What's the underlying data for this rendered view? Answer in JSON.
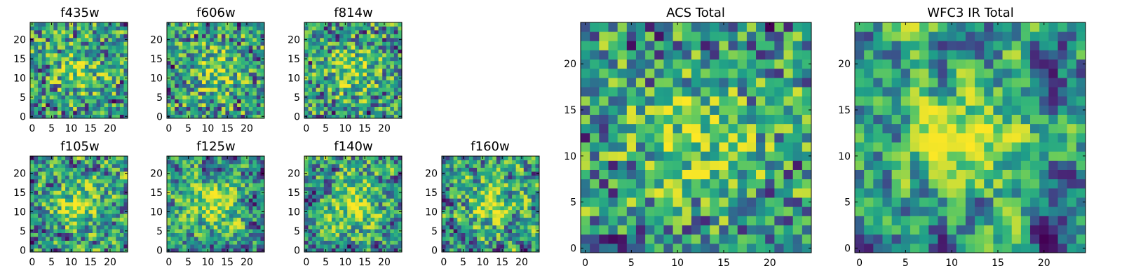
{
  "chart_data": [
    {
      "type": "heatmap",
      "title": "f435w",
      "grid_size": 25,
      "xticks": [
        0,
        5,
        10,
        15,
        20
      ],
      "yticks": [
        0,
        5,
        10,
        15,
        20
      ],
      "colormap": "viridis",
      "seed": 11,
      "smooth": 0
    },
    {
      "type": "heatmap",
      "title": "f606w",
      "grid_size": 25,
      "xticks": [
        0,
        5,
        10,
        15,
        20
      ],
      "yticks": [
        0,
        5,
        10,
        15,
        20
      ],
      "colormap": "viridis",
      "seed": 23,
      "smooth": 0
    },
    {
      "type": "heatmap",
      "title": "f814w",
      "grid_size": 25,
      "xticks": [
        0,
        5,
        10,
        15,
        20
      ],
      "yticks": [
        0,
        5,
        10,
        15,
        20
      ],
      "colormap": "viridis",
      "seed": 37,
      "smooth": 0
    },
    {
      "type": "heatmap",
      "title": "f105w",
      "grid_size": 25,
      "xticks": [
        0,
        5,
        10,
        15,
        20
      ],
      "yticks": [
        0,
        5,
        10,
        15,
        20
      ],
      "colormap": "viridis",
      "seed": 41,
      "smooth": 1
    },
    {
      "type": "heatmap",
      "title": "f125w",
      "grid_size": 25,
      "xticks": [
        0,
        5,
        10,
        15,
        20
      ],
      "yticks": [
        0,
        5,
        10,
        15,
        20
      ],
      "colormap": "viridis",
      "seed": 53,
      "smooth": 1
    },
    {
      "type": "heatmap",
      "title": "f140w",
      "grid_size": 25,
      "xticks": [
        0,
        5,
        10,
        15,
        20
      ],
      "yticks": [
        0,
        5,
        10,
        15,
        20
      ],
      "colormap": "viridis",
      "seed": 67,
      "smooth": 1
    },
    {
      "type": "heatmap",
      "title": "f160w",
      "grid_size": 25,
      "xticks": [
        0,
        5,
        10,
        15,
        20
      ],
      "yticks": [
        0,
        5,
        10,
        15,
        20
      ],
      "colormap": "viridis",
      "seed": 79,
      "smooth": 1
    },
    {
      "type": "heatmap",
      "title": "ACS Total",
      "grid_size": 25,
      "xticks": [
        0,
        5,
        10,
        15,
        20
      ],
      "yticks": [
        0,
        5,
        10,
        15,
        20
      ],
      "colormap": "viridis",
      "seed": 97,
      "smooth": 0
    },
    {
      "type": "heatmap",
      "title": "WFC3 IR Total",
      "grid_size": 25,
      "xticks": [
        0,
        5,
        10,
        15,
        20
      ],
      "yticks": [
        0,
        5,
        10,
        15,
        20
      ],
      "colormap": "viridis",
      "seed": 131,
      "smooth": 2
    }
  ]
}
